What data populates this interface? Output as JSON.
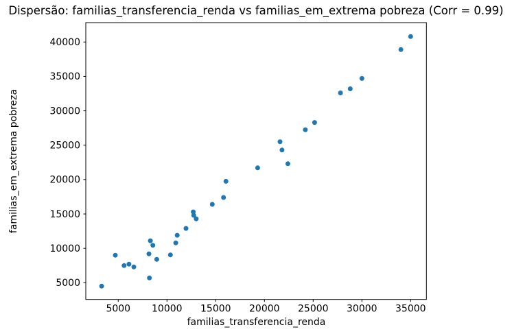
{
  "title": "Dispersão: familias_transferencia_renda vs familias_em_extrema pobreza (Corr = 0.99)",
  "chart_data": {
    "type": "scatter",
    "title": "Dispersão: familias_transferencia_renda vs familias_em_extrema pobreza (Corr = 0.99)",
    "xlabel": "familias_transferencia_renda",
    "ylabel": "familias_em_extrema pobreza",
    "correlation": 0.99,
    "xlim": [
      1670,
      36620
    ],
    "ylim": [
      2570,
      42820
    ],
    "xticks": [
      5000,
      10000,
      15000,
      20000,
      25000,
      30000,
      35000
    ],
    "yticks": [
      5000,
      10000,
      15000,
      20000,
      25000,
      30000,
      35000,
      40000
    ],
    "grid": false,
    "legend_position": "none",
    "marker_color": "#1f77b4",
    "axis_color": "#000000",
    "points": [
      [
        3300,
        4500
      ],
      [
        4700,
        9000
      ],
      [
        5600,
        7500
      ],
      [
        6100,
        7700
      ],
      [
        6600,
        7300
      ],
      [
        8150,
        9200
      ],
      [
        8200,
        5700
      ],
      [
        8300,
        11100
      ],
      [
        8550,
        10450
      ],
      [
        8950,
        8400
      ],
      [
        10350,
        9050
      ],
      [
        10900,
        10800
      ],
      [
        11050,
        11900
      ],
      [
        11950,
        12900
      ],
      [
        12700,
        15300
      ],
      [
        12750,
        14800
      ],
      [
        13000,
        14300
      ],
      [
        14650,
        16400
      ],
      [
        15800,
        17400
      ],
      [
        16050,
        19750
      ],
      [
        19300,
        21700
      ],
      [
        21600,
        25500
      ],
      [
        21800,
        24300
      ],
      [
        22400,
        22300
      ],
      [
        24200,
        27250
      ],
      [
        25150,
        28300
      ],
      [
        27800,
        32600
      ],
      [
        28800,
        33200
      ],
      [
        30000,
        34700
      ],
      [
        34000,
        38900
      ],
      [
        35000,
        40800
      ]
    ]
  }
}
